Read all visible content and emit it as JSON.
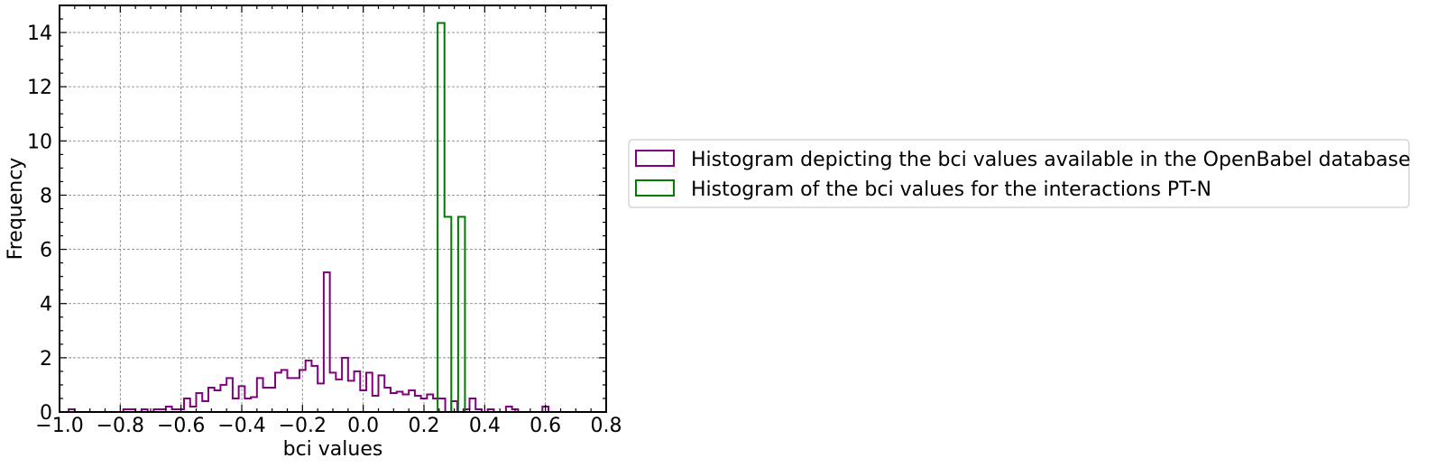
{
  "chart_data": {
    "type": "histogram",
    "xlabel": "bci values",
    "ylabel": "Frequency",
    "xlim": [
      -1.0,
      0.8
    ],
    "ylim": [
      0,
      15
    ],
    "x_ticks": [
      "−1.0",
      "−0.8",
      "−0.6",
      "−0.4",
      "−0.2",
      "0.0",
      "0.2",
      "0.4",
      "0.6",
      "0.8"
    ],
    "x_tick_values": [
      -1.0,
      -0.8,
      -0.6,
      -0.4,
      -0.2,
      0.0,
      0.2,
      0.4,
      0.6,
      0.8
    ],
    "y_ticks": [
      "0",
      "2",
      "4",
      "6",
      "8",
      "10",
      "12",
      "14"
    ],
    "y_tick_values": [
      0,
      2,
      4,
      6,
      8,
      10,
      12,
      14
    ],
    "grid": true,
    "legend_position": "right",
    "series": [
      {
        "name": "Histogram depicting the bci values available in the OpenBabel database",
        "color": "#800080",
        "histtype": "step",
        "bin_start": -0.97,
        "bin_width": 0.02,
        "values": [
          0.1,
          0,
          0,
          0,
          0,
          0,
          0,
          0,
          0,
          0.1,
          0.1,
          0,
          0.1,
          0,
          0.1,
          0.1,
          0.2,
          0.1,
          0.1,
          0.5,
          0.2,
          0.7,
          0.4,
          0.9,
          0.8,
          1.0,
          1.25,
          0.5,
          0.95,
          0.5,
          0.55,
          1.25,
          0.9,
          0.9,
          1.45,
          1.55,
          1.25,
          1.25,
          1.55,
          1.9,
          1.7,
          1.05,
          5.15,
          1.45,
          1.2,
          2.0,
          1.15,
          1.5,
          0.8,
          1.45,
          0.6,
          1.35,
          0.9,
          0.7,
          0.75,
          0.65,
          0.8,
          0.6,
          0.5,
          0.65,
          0.5,
          0.5,
          0,
          0.4,
          0,
          0.1,
          0.5,
          0.1,
          0,
          0.1,
          0,
          0,
          0.2,
          0.1,
          0,
          0,
          0,
          0,
          0.2,
          0
        ]
      },
      {
        "name": "Histogram of the bci values for the interactions PT-N",
        "color": "#007a00",
        "histtype": "step",
        "bin_edges": [
          0.245,
          0.2675,
          0.29,
          0.3125,
          0.335,
          0.3575,
          0.38
        ],
        "values": [
          14.35,
          7.2,
          0,
          7.2,
          0,
          0
        ]
      }
    ]
  }
}
